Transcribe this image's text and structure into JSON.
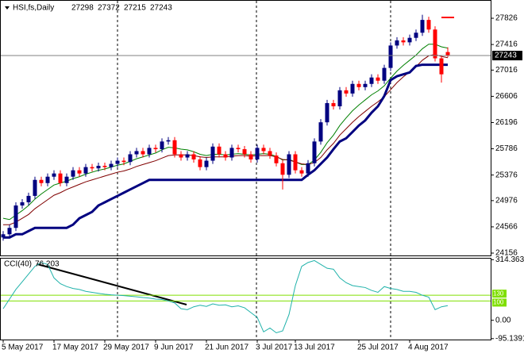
{
  "chart_data": [
    {
      "type": "candlestick",
      "title": "HSI,fs,Daily",
      "categories": [
        "5 May 2017",
        null,
        null,
        null,
        null,
        null,
        null,
        null,
        "17 May 2017",
        null,
        null,
        null,
        null,
        null,
        null,
        null,
        "29 May 2017",
        null,
        null,
        null,
        null,
        null,
        null,
        null,
        "9 Jun 2017",
        null,
        null,
        null,
        null,
        null,
        null,
        null,
        "21 Jun 2017",
        null,
        null,
        null,
        null,
        null,
        null,
        null,
        "3 Jul 2017",
        null,
        null,
        null,
        null,
        null,
        "13 Jul 2017",
        null,
        null,
        null,
        null,
        null,
        null,
        null,
        null,
        null,
        "25 Jul 2017",
        null,
        null,
        null,
        null,
        null,
        null,
        null,
        "4 Aug 2017",
        null,
        null,
        null,
        null,
        null,
        null
      ],
      "open": [
        24400,
        24450,
        24550,
        24900,
        24950,
        25050,
        25300,
        25250,
        25350,
        25400,
        25250,
        25350,
        25450,
        25400,
        25500,
        25480,
        25520,
        25500,
        25550,
        25600,
        25580,
        25700,
        25750,
        25700,
        25800,
        25780,
        25900,
        25920,
        25700,
        25650,
        25700,
        25620,
        25500,
        25600,
        25820,
        25700,
        25650,
        25800,
        25780,
        25700,
        25620,
        25800,
        25750,
        25680,
        25560,
        25380,
        25700,
        25450,
        25400,
        25560,
        25900,
        26200,
        26500,
        26450,
        26700,
        26650,
        26800,
        26750,
        26800,
        26900,
        26850,
        27050,
        27400,
        27480,
        27450,
        27520,
        27600,
        27800,
        27650,
        27200,
        27298
      ],
      "high": [
        24500,
        24600,
        24950,
        25000,
        25100,
        25350,
        25350,
        25400,
        25450,
        25450,
        25400,
        25500,
        25500,
        25550,
        25550,
        25570,
        25570,
        25600,
        25650,
        25650,
        25750,
        25800,
        25800,
        25850,
        25850,
        25950,
        25970,
        25970,
        25750,
        25750,
        25750,
        25670,
        25650,
        25870,
        25870,
        25750,
        25850,
        25850,
        25830,
        25750,
        25850,
        25850,
        25800,
        25730,
        25610,
        25750,
        25750,
        25500,
        25610,
        25950,
        26250,
        26550,
        26550,
        26750,
        26750,
        26850,
        26850,
        26850,
        26950,
        26950,
        27100,
        27450,
        27530,
        27530,
        27570,
        27650,
        27880,
        27850,
        27700,
        27250,
        27372
      ],
      "low": [
        24350,
        24400,
        24500,
        24850,
        24900,
        25000,
        25200,
        25200,
        25300,
        25200,
        25200,
        25300,
        25350,
        25350,
        25430,
        25430,
        25450,
        25450,
        25500,
        25530,
        25530,
        25650,
        25650,
        25650,
        25730,
        25730,
        25850,
        25650,
        25600,
        25600,
        25570,
        25450,
        25450,
        25550,
        25650,
        25600,
        25600,
        25730,
        25650,
        25570,
        25570,
        25700,
        25630,
        25510,
        25150,
        25330,
        25400,
        25350,
        25350,
        25510,
        25850,
        26150,
        26400,
        26400,
        26600,
        26600,
        26700,
        26700,
        26750,
        26800,
        26800,
        27000,
        27350,
        27400,
        27400,
        27470,
        27550,
        27600,
        27150,
        26820,
        27215
      ],
      "close": [
        24450,
        24550,
        24900,
        24950,
        25050,
        25300,
        25250,
        25350,
        25400,
        25250,
        25350,
        25450,
        25400,
        25500,
        25480,
        25520,
        25500,
        25550,
        25600,
        25580,
        25700,
        25750,
        25700,
        25800,
        25780,
        25900,
        25920,
        25700,
        25650,
        25700,
        25620,
        25500,
        25600,
        25820,
        25700,
        25650,
        25800,
        25780,
        25700,
        25620,
        25800,
        25750,
        25680,
        25560,
        25380,
        25700,
        25450,
        25400,
        25560,
        25900,
        26200,
        26500,
        26450,
        26700,
        26650,
        26800,
        26750,
        26800,
        26900,
        26850,
        27050,
        27400,
        27480,
        27450,
        27520,
        27600,
        27800,
        27650,
        27200,
        26950,
        27243
      ],
      "up_color": "#000080",
      "down_color": "#ff0000",
      "ylim": [
        24119,
        28099
      ],
      "yticks": [
        27826,
        27416,
        27016,
        26606,
        26196,
        25786,
        25376,
        24976,
        24566,
        24156
      ],
      "series": [
        {
          "color": "#008000",
          "values": [
            24700,
            24680,
            24750,
            24820,
            24900,
            25000,
            25080,
            25150,
            25220,
            25250,
            25280,
            25320,
            25350,
            25390,
            25420,
            25450,
            25470,
            25500,
            25530,
            25550,
            25590,
            25630,
            25660,
            25690,
            25720,
            25770,
            25810,
            25800,
            25780,
            25770,
            25740,
            25700,
            25680,
            25700,
            25700,
            25690,
            25700,
            25710,
            25700,
            25690,
            25700,
            25710,
            25700,
            25670,
            25610,
            25620,
            25580,
            25540,
            25540,
            25610,
            25730,
            25880,
            26000,
            26150,
            26270,
            26380,
            26470,
            26550,
            26630,
            26690,
            26770,
            26890,
            27000,
            27090,
            27170,
            27250,
            27350,
            27420,
            27420,
            27380,
            27360
          ]
        },
        {
          "color": "#800000",
          "values": [
            24600,
            24600,
            24640,
            24700,
            24760,
            24850,
            24920,
            24990,
            25060,
            25100,
            25150,
            25190,
            25230,
            25270,
            25300,
            25330,
            25360,
            25390,
            25420,
            25440,
            25470,
            25510,
            25540,
            25570,
            25600,
            25640,
            25680,
            25690,
            25690,
            25690,
            25680,
            25660,
            25650,
            25660,
            25660,
            25660,
            25670,
            25680,
            25680,
            25670,
            25680,
            25680,
            25680,
            25660,
            25620,
            25610,
            25580,
            25550,
            25540,
            25570,
            25650,
            25770,
            25870,
            26000,
            26100,
            26200,
            26290,
            26370,
            26450,
            26520,
            26600,
            26710,
            26820,
            26910,
            26990,
            27070,
            27170,
            27240,
            27260,
            27230,
            27210
          ]
        },
        {
          "color": "#000080",
          "values": [
            24400,
            24400,
            24450,
            24450,
            24500,
            24550,
            24550,
            24550,
            24550,
            24550,
            24550,
            24600,
            24700,
            24750,
            24800,
            24900,
            24950,
            25000,
            25050,
            25100,
            25150,
            25200,
            25250,
            25300,
            25300,
            25300,
            25300,
            25300,
            25300,
            25300,
            25300,
            25300,
            25300,
            25300,
            25300,
            25300,
            25300,
            25300,
            25300,
            25300,
            25300,
            25300,
            25300,
            25300,
            25300,
            25300,
            25300,
            25300,
            25380,
            25450,
            25550,
            25650,
            25780,
            25900,
            25950,
            26050,
            26150,
            26230,
            26350,
            26450,
            26610,
            26860,
            26920,
            26950,
            26980,
            27080,
            27100,
            27100,
            27100,
            27100,
            27100
          ]
        }
      ]
    },
    {
      "type": "line",
      "title": "CCI(40)",
      "color": "#20b2aa",
      "values": [
        60,
        110,
        160,
        200,
        240,
        280,
        300,
        290,
        220,
        190,
        175,
        165,
        160,
        150,
        145,
        140,
        135,
        132,
        130,
        128,
        125,
        122,
        118,
        115,
        110,
        108,
        100,
        90,
        60,
        55,
        70,
        78,
        72,
        85,
        78,
        80,
        70,
        75,
        65,
        40,
        15,
        -60,
        -40,
        -65,
        -55,
        30,
        180,
        280,
        300,
        310,
        290,
        270,
        265,
        220,
        195,
        180,
        175,
        170,
        155,
        145,
        175,
        165,
        160,
        150,
        150,
        145,
        130,
        120,
        55,
        70,
        76.203
      ],
      "ylim": [
        -100,
        320
      ],
      "yticks": [
        314.3633,
        {
          "value": 0,
          "label": "0.00"
        },
        -95.1391
      ],
      "levels": [
        130,
        100
      ],
      "level_color": "#7fdf00"
    }
  ]
}
